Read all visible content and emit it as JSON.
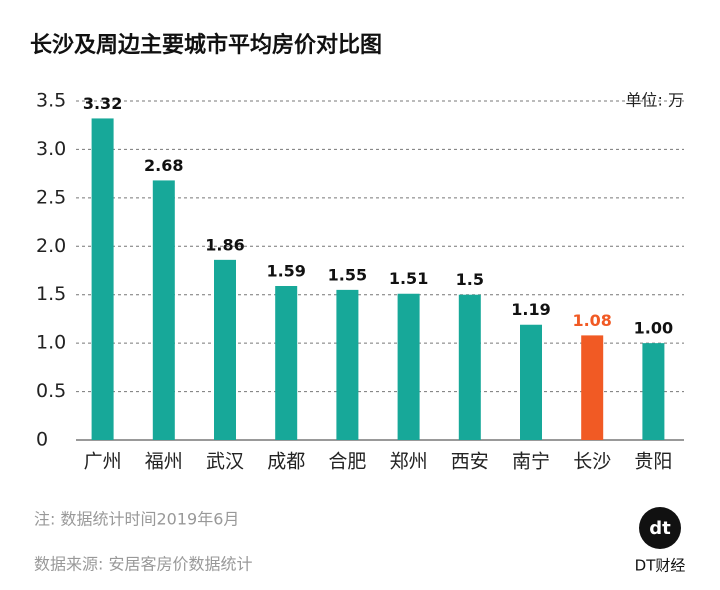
{
  "chart_data": {
    "type": "bar",
    "title": "长沙及周边主要城市平均房价对比图",
    "unit": "单位: 万",
    "categories": [
      "广州",
      "福州",
      "武汉",
      "成都",
      "合肥",
      "郑州",
      "西安",
      "南宁",
      "长沙",
      "贵阳"
    ],
    "values": [
      3.32,
      2.68,
      1.86,
      1.59,
      1.55,
      1.51,
      1.5,
      1.19,
      1.08,
      1.0
    ],
    "value_labels": [
      "3.32",
      "2.68",
      "1.86",
      "1.59",
      "1.55",
      "1.51",
      "1.5",
      "1.19",
      "1.08",
      "1.00"
    ],
    "colors": [
      "#17a899",
      "#17a899",
      "#17a899",
      "#17a899",
      "#17a899",
      "#17a899",
      "#17a899",
      "#17a899",
      "#f15a24",
      "#17a899"
    ],
    "label_colors": [
      "#111111",
      "#111111",
      "#111111",
      "#111111",
      "#111111",
      "#111111",
      "#111111",
      "#111111",
      "#f15a24",
      "#111111"
    ],
    "ylim": [
      0,
      3.5
    ],
    "yticks": [
      0,
      0.5,
      {
        "value": 1,
        "label": "1.0"
      },
      1.5,
      {
        "value": 2,
        "label": "2.0"
      },
      2.5,
      {
        "value": 3,
        "label": "3.0"
      },
      3.5
    ],
    "grid": true,
    "note": "注: 数据统计时间2019年6月",
    "source": "数据来源: 安居客房价数据统计",
    "logo": "dt",
    "brand": "DT财经"
  }
}
